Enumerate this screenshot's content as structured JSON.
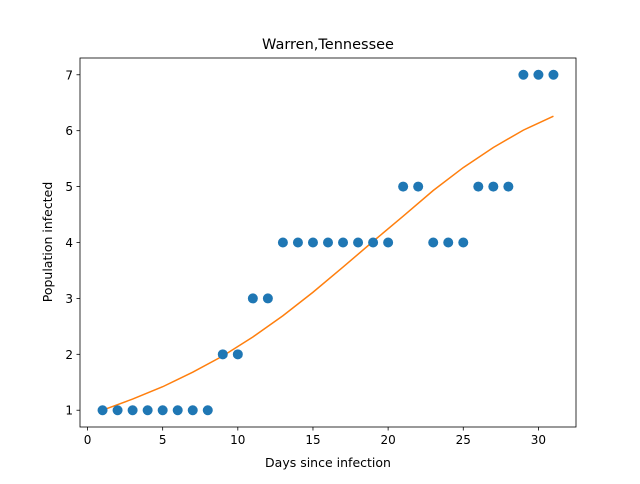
{
  "chart_data": {
    "type": "scatter",
    "title": "Warren,Tennessee",
    "xlabel": "Days since infection",
    "ylabel": "Population infected",
    "xlim": [
      -0.5,
      32.5
    ],
    "ylim": [
      0.7,
      7.3
    ],
    "xticks": [
      0,
      5,
      10,
      15,
      20,
      25,
      30
    ],
    "yticks": [
      1,
      2,
      3,
      4,
      5,
      6,
      7
    ],
    "grid": false,
    "series": [
      {
        "kind": "points",
        "color": "#1f77b4",
        "x": [
          1,
          2,
          3,
          4,
          5,
          6,
          7,
          8,
          9,
          10,
          11,
          12,
          13,
          14,
          15,
          16,
          17,
          18,
          19,
          20,
          21,
          22,
          23,
          24,
          25,
          26,
          27,
          28,
          29,
          30,
          31
        ],
        "y": [
          1,
          1,
          1,
          1,
          1,
          1,
          1,
          1,
          2,
          2,
          3,
          3,
          4,
          4,
          4,
          4,
          4,
          4,
          4,
          4,
          5,
          5,
          4,
          4,
          4,
          5,
          5,
          5,
          7,
          7,
          7
        ]
      },
      {
        "kind": "fit-line",
        "color": "#ff7f0e",
        "x": [
          1,
          3,
          5,
          7,
          9,
          11,
          13,
          15,
          17,
          19,
          21,
          23,
          25,
          27,
          29,
          31
        ],
        "y": [
          1.0,
          1.2,
          1.42,
          1.68,
          1.97,
          2.31,
          2.69,
          3.11,
          3.56,
          4.02,
          4.47,
          4.93,
          5.34,
          5.7,
          6.01,
          6.26
        ]
      }
    ]
  }
}
